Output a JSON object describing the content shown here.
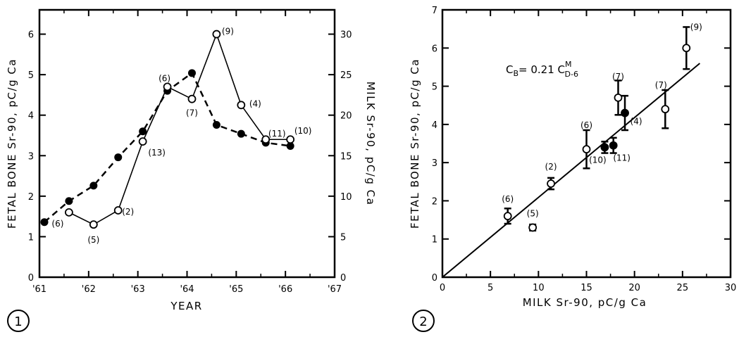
{
  "panels": [
    {
      "number": "1"
    },
    {
      "number": "2"
    }
  ],
  "chart_data": [
    {
      "type": "line",
      "xlabel": "YEAR",
      "ylabel": "FETAL BONE Sr-90, pC/g Ca",
      "ylabel_right": "MILK Sr-90, pC/g Ca",
      "xlim": [
        1961,
        1967
      ],
      "ylim": [
        0,
        6.6
      ],
      "ylim_right": [
        0,
        33
      ],
      "x_tick_labels": [
        "'61",
        "'62",
        "'63",
        "'64",
        "'65",
        "'66",
        "'67"
      ],
      "x_tick_values": [
        1961,
        1962,
        1963,
        1964,
        1965,
        1966,
        1967
      ],
      "y_ticks": [
        0,
        1,
        2,
        3,
        4,
        5,
        6
      ],
      "y_ticks_right": [
        0,
        5,
        10,
        15,
        20,
        25,
        30
      ],
      "series": [
        {
          "marker": "open-circle",
          "line": "solid",
          "axis": "left",
          "x": [
            1961.6,
            1962.1,
            1962.6,
            1963.1,
            1963.6,
            1964.1,
            1964.6,
            1965.1,
            1965.6,
            1966.1
          ],
          "y": [
            1.6,
            1.3,
            1.65,
            3.35,
            4.7,
            4.4,
            6.0,
            4.25,
            3.4,
            3.4
          ],
          "labels": [
            "(6)",
            "(5)",
            "(2)",
            "(13)",
            "(6)",
            "(7)",
            "(9)",
            "(4)",
            "(11)",
            "(10)"
          ]
        },
        {
          "marker": "filled-circle",
          "line": "dashed",
          "axis": "right",
          "x": [
            1961.1,
            1961.6,
            1962.1,
            1962.6,
            1963.1,
            1963.6,
            1964.1,
            1964.6,
            1965.1,
            1965.6,
            1966.1
          ],
          "y": [
            6.8,
            9.4,
            11.3,
            14.8,
            18.0,
            23.0,
            25.2,
            18.8,
            17.7,
            16.6,
            16.2
          ]
        }
      ]
    },
    {
      "type": "scatter",
      "xlabel": "MILK Sr-90, pC/g Ca",
      "ylabel": "FETAL BONE Sr-90, pC/g Ca",
      "xlim": [
        0,
        30
      ],
      "ylim": [
        0,
        7
      ],
      "x_ticks": [
        0,
        5,
        10,
        15,
        20,
        25,
        30
      ],
      "y_ticks": [
        0,
        1,
        2,
        3,
        4,
        5,
        6,
        7
      ],
      "annotation": {
        "base": "C",
        "sub1": "B",
        "mid": "= 0.21 C",
        "sup": "M",
        "sub2": "D-6"
      },
      "fit_line": {
        "x": [
          0,
          26.8
        ],
        "y": [
          0,
          5.6
        ]
      },
      "points": [
        {
          "x": 6.8,
          "y": 1.6,
          "yerr": 0.2,
          "filled": false,
          "label": "(6)"
        },
        {
          "x": 9.4,
          "y": 1.3,
          "yerr": 0.08,
          "filled": false,
          "label": "(5)"
        },
        {
          "x": 11.3,
          "y": 2.45,
          "yerr": 0.15,
          "filled": false,
          "label": "(2)"
        },
        {
          "x": 15.0,
          "y": 3.35,
          "yerr": 0.5,
          "filled": false,
          "label": "(6)"
        },
        {
          "x": 16.9,
          "y": 3.4,
          "yerr": 0.15,
          "filled": true,
          "label": "(10)"
        },
        {
          "x": 17.8,
          "y": 3.45,
          "yerr": 0.2,
          "filled": true,
          "label": "(11)"
        },
        {
          "x": 18.3,
          "y": 4.7,
          "yerr": 0.45,
          "filled": false,
          "label": "(7)"
        },
        {
          "x": 19.0,
          "y": 4.3,
          "yerr": 0.45,
          "filled": true,
          "label": "(4)"
        },
        {
          "x": 23.2,
          "y": 4.4,
          "yerr": 0.5,
          "filled": false,
          "label": "(7)"
        },
        {
          "x": 25.4,
          "y": 6.0,
          "yerr": 0.55,
          "filled": false,
          "label": "(9)"
        }
      ]
    }
  ]
}
